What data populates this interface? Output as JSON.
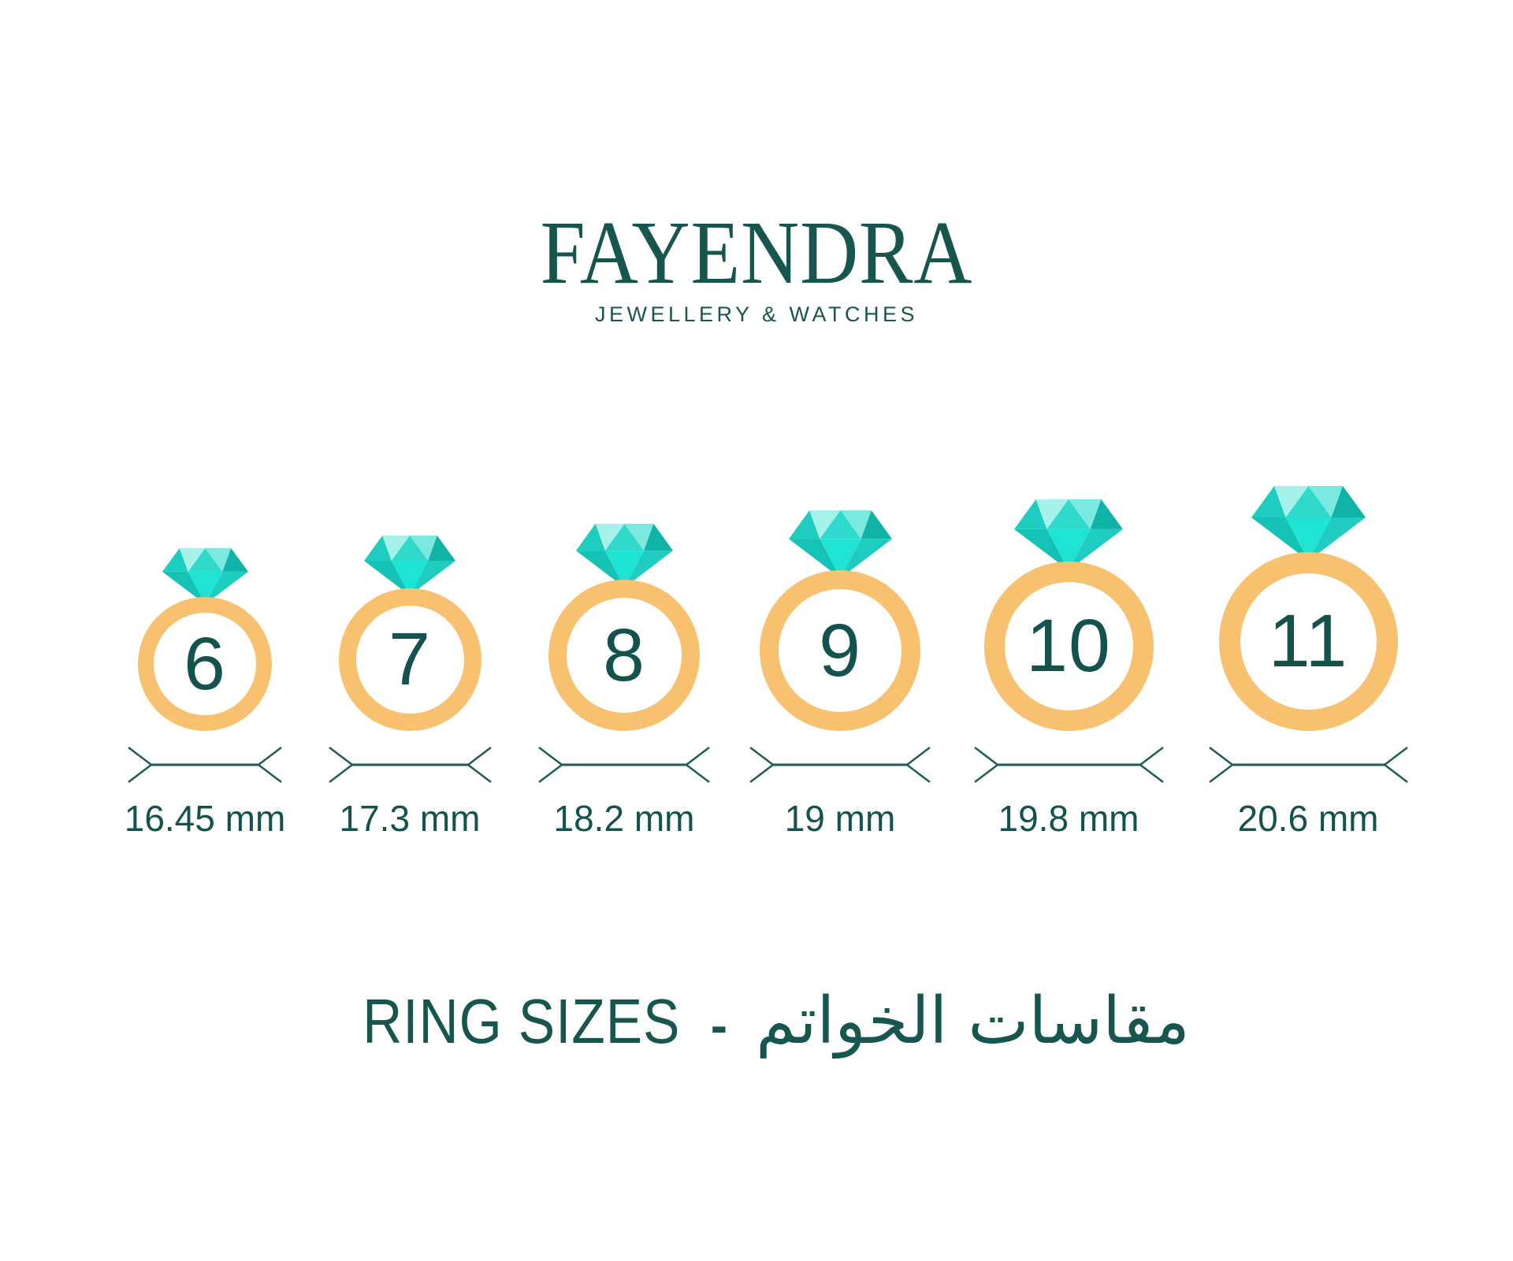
{
  "brand": {
    "name": "FAYENDRA",
    "tagline": "JEWELLERY & WATCHES"
  },
  "chart_data": {
    "type": "table",
    "description": "Ring size chart mapping US ring sizes to inner diameter in millimetres",
    "rings": [
      {
        "size": "6",
        "diameter_label": "16.45 mm"
      },
      {
        "size": "7",
        "diameter_label": "17.3 mm"
      },
      {
        "size": "8",
        "diameter_label": "18.2 mm"
      },
      {
        "size": "9",
        "diameter_label": "19 mm"
      },
      {
        "size": "10",
        "diameter_label": "19.8 mm"
      },
      {
        "size": "11",
        "diameter_label": "20.6 mm"
      }
    ]
  },
  "title": {
    "en": "RING SIZES",
    "separator": "-",
    "ar": "مقاسات الخواتم"
  },
  "colors": {
    "page": "#FFFFFF",
    "brand_teal": "#17554F",
    "text_teal": "#14534D",
    "line_teal": "#1E5C56",
    "band_gold": "#F7C170",
    "diamond_bright": "#1FE4D3",
    "diamond_turquoise": "#2FD9CB",
    "diamond_medium": "#1FCCC0",
    "diamond_teal": "#15C2B6",
    "diamond_dark": "#0FB3A8",
    "diamond_light": "#7BE9E0",
    "diamond_pale": "#A6F2EA"
  }
}
